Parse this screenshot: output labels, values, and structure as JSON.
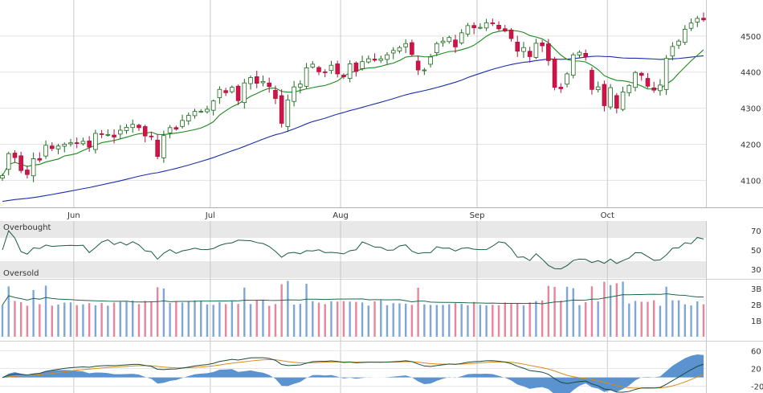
{
  "chart_data": [
    {
      "type": "candlestick",
      "months": [
        "Jun",
        "Jul",
        "Aug",
        "Sep",
        "Oct"
      ],
      "y_ticks": [
        4100,
        4200,
        4300,
        4400,
        4500
      ],
      "ylim": [
        4025,
        4600
      ],
      "dates": [
        "05-13",
        "05-14",
        "05-17",
        "05-18",
        "05-19",
        "05-20",
        "05-21",
        "05-24",
        "05-25",
        "05-26",
        "05-27",
        "05-28",
        "06-01",
        "06-02",
        "06-03",
        "06-04",
        "06-07",
        "06-08",
        "06-09",
        "06-10",
        "06-11",
        "06-14",
        "06-15",
        "06-16",
        "06-17",
        "06-18",
        "06-21",
        "06-22",
        "06-23",
        "06-24",
        "06-25",
        "06-28",
        "06-29",
        "06-30",
        "07-01",
        "07-02",
        "07-06",
        "07-07",
        "07-08",
        "07-09",
        "07-12",
        "07-13",
        "07-14",
        "07-15",
        "07-16",
        "07-19",
        "07-20",
        "07-21",
        "07-22",
        "07-23",
        "07-26",
        "07-27",
        "07-28",
        "07-29",
        "07-30",
        "08-02",
        "08-03",
        "08-04",
        "08-05",
        "08-06",
        "08-09",
        "08-10",
        "08-11",
        "08-12",
        "08-13",
        "08-16",
        "08-17",
        "08-18",
        "08-19",
        "08-20",
        "08-23",
        "08-24",
        "08-25",
        "08-26",
        "08-27",
        "08-30",
        "08-31",
        "09-01",
        "09-02",
        "09-03",
        "09-07",
        "09-08",
        "09-09",
        "09-10",
        "09-13",
        "09-14",
        "09-15",
        "09-16",
        "09-17",
        "09-20",
        "09-21",
        "09-22",
        "09-23",
        "09-24",
        "09-27",
        "09-28",
        "09-29",
        "09-30",
        "10-01",
        "10-04",
        "10-05",
        "10-06",
        "10-07",
        "10-08",
        "10-11",
        "10-12",
        "10-13",
        "10-14",
        "10-15",
        "10-18",
        "10-19",
        "10-20",
        "10-21",
        "10-22"
      ],
      "close": [
        4113,
        4174,
        4163,
        4127,
        4116,
        4160,
        4156,
        4197,
        4188,
        4195,
        4200,
        4204,
        4202,
        4208,
        4192,
        4230,
        4227,
        4227,
        4220,
        4239,
        4247,
        4255,
        4246,
        4223,
        4222,
        4166,
        4224,
        4246,
        4242,
        4266,
        4280,
        4291,
        4291,
        4297,
        4320,
        4352,
        4343,
        4358,
        4321,
        4370,
        4385,
        4369,
        4374,
        4360,
        4327,
        4258,
        4323,
        4359,
        4367,
        4412,
        4422,
        4401,
        4400,
        4419,
        4395,
        4387,
        4423,
        4402,
        4429,
        4437,
        4433,
        4437,
        4448,
        4460,
        4468,
        4479,
        4449,
        4406,
        4406,
        4442,
        4479,
        4486,
        4496,
        4470,
        4509,
        4529,
        4523,
        4524,
        4537,
        4535,
        4520,
        4514,
        4493,
        4458,
        4468,
        4443,
        4480,
        4473,
        4432,
        4358,
        4354,
        4395,
        4448,
        4455,
        4443,
        4352,
        4359,
        4307,
        4357,
        4300,
        4345,
        4363,
        4399,
        4391,
        4361,
        4350,
        4364,
        4438,
        4471,
        4486,
        4519,
        4536,
        4549,
        4545
      ]
    },
    {
      "type": "line",
      "title": "",
      "zones": [
        "Overbought",
        "Oversold"
      ],
      "y_ticks": [
        30,
        50,
        70
      ],
      "ylim": [
        20,
        80
      ]
    },
    {
      "type": "bar",
      "title": "",
      "y_ticks": [
        "1B",
        "2B",
        "3B"
      ],
      "ylim": [
        0,
        3.6
      ]
    },
    {
      "type": "line",
      "title": "",
      "y_ticks": [
        -20,
        20,
        60
      ],
      "ylim": [
        -35,
        75
      ]
    }
  ]
}
